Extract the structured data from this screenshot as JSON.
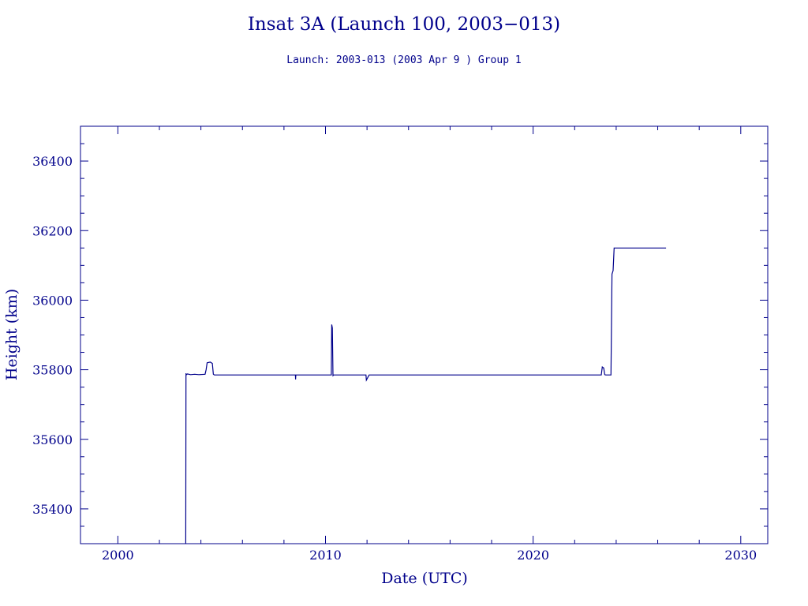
{
  "chart_data": {
    "type": "line",
    "title": "Insat 3A (Launch 100, 2003−013)",
    "subtitle": "Launch: 2003-013  (2003 Apr  9 )  Group 1",
    "xlabel": "Date (UTC)",
    "ylabel": "Height (km)",
    "xlim": [
      1998.2,
      2031.3
    ],
    "ylim": [
      35300,
      36500
    ],
    "x_ticks": [
      2000,
      2010,
      2020,
      2030
    ],
    "y_ticks": [
      35400,
      35600,
      35800,
      36000,
      36200,
      36400
    ],
    "x_minor_step": 2,
    "y_minor_step": 50,
    "grid": false,
    "legend": "none",
    "colors": {
      "ink": "#00008b",
      "background": "#ffffff"
    },
    "series": [
      {
        "x": [
          2003.27,
          2003.28,
          2003.29,
          2003.35,
          2003.5,
          2003.7,
          2003.9,
          2004.2,
          2004.25,
          2004.3,
          2004.45,
          2004.55,
          2004.6,
          2004.65,
          2005.0,
          2006.0,
          2007.0,
          2008.0,
          2008.55,
          2008.56,
          2008.57,
          2009.0,
          2010.0,
          2010.28,
          2010.3,
          2010.33,
          2010.36,
          2010.4,
          2011.0,
          2011.95,
          2011.97,
          2012.1,
          2012.2,
          2013.0,
          2014.0,
          2015.0,
          2016.0,
          2017.0,
          2018.0,
          2019.0,
          2020.0,
          2021.0,
          2022.0,
          2023.0,
          2023.28,
          2023.33,
          2023.4,
          2023.45,
          2023.5,
          2023.75,
          2023.8,
          2023.85,
          2023.9,
          2024.0,
          2025.0,
          2026.0,
          2026.4
        ],
        "y": [
          35300,
          35790,
          35785,
          35788,
          35786,
          35787,
          35786,
          35787,
          35800,
          35820,
          35822,
          35818,
          35787,
          35785,
          35785,
          35785,
          35785,
          35785,
          35785,
          35772,
          35785,
          35785,
          35785,
          35785,
          35930,
          35920,
          35783,
          35785,
          35785,
          35785,
          35770,
          35785,
          35785,
          35785,
          35785,
          35785,
          35785,
          35785,
          35785,
          35785,
          35785,
          35785,
          35785,
          35785,
          35785,
          35808,
          35805,
          35786,
          35785,
          35785,
          36075,
          36085,
          36150,
          36150,
          36150,
          36150,
          36150
        ]
      }
    ]
  }
}
